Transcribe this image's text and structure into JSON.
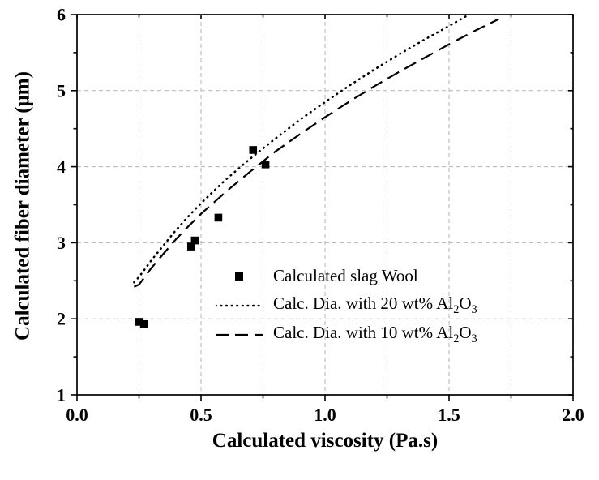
{
  "chart_data": {
    "type": "scatter",
    "title": "",
    "xlabel": "Calculated viscosity (Pa.s)",
    "ylabel": "Calculated fiber diameter (μm)",
    "xlim": [
      0.0,
      2.0
    ],
    "ylim": [
      1,
      6
    ],
    "x_ticks": {
      "values": [
        0.0,
        0.5,
        1.0,
        1.5,
        2.0
      ],
      "labels": [
        "0.0",
        "0.5",
        "1.0",
        "1.5",
        "2.0"
      ],
      "minor_values": [
        0.25,
        0.75,
        1.25,
        1.75
      ]
    },
    "y_ticks": {
      "values": [
        1,
        2,
        3,
        4,
        5,
        6
      ],
      "labels": [
        "1",
        "2",
        "3",
        "4",
        "5",
        "6"
      ],
      "minor_values": [
        1.5,
        2.5,
        3.5,
        4.5,
        5.5
      ]
    },
    "grid": {
      "style": "dashed",
      "color": "#b3b3b3",
      "vertical_values": [
        0.25,
        0.5,
        0.75,
        1.0,
        1.25,
        1.5,
        1.75
      ],
      "horizontal_values": [
        2,
        3,
        4,
        5
      ]
    },
    "series": [
      {
        "name": "Calculated slag Wool",
        "kind": "scatter",
        "marker": "square",
        "color": "#000000",
        "points": [
          [
            0.25,
            1.96
          ],
          [
            0.27,
            1.93
          ],
          [
            0.46,
            2.95
          ],
          [
            0.475,
            3.03
          ],
          [
            0.57,
            3.33
          ],
          [
            0.71,
            4.22
          ],
          [
            0.76,
            4.03
          ]
        ]
      },
      {
        "name": "Calc. Dia. with 20 wt% Al2O3",
        "kind": "line",
        "style": "dotted",
        "color": "#000000",
        "points": [
          [
            0.23,
            2.48
          ],
          [
            0.25,
            2.55
          ],
          [
            0.3,
            2.77
          ],
          [
            0.35,
            2.97
          ],
          [
            0.4,
            3.17
          ],
          [
            0.45,
            3.35
          ],
          [
            0.5,
            3.52
          ],
          [
            0.6,
            3.83
          ],
          [
            0.7,
            4.11
          ],
          [
            0.8,
            4.37
          ],
          [
            0.9,
            4.62
          ],
          [
            1.0,
            4.85
          ],
          [
            1.1,
            5.07
          ],
          [
            1.2,
            5.28
          ],
          [
            1.3,
            5.48
          ],
          [
            1.4,
            5.67
          ],
          [
            1.5,
            5.85
          ],
          [
            1.58,
            6.0
          ]
        ]
      },
      {
        "name": "Calc. Dia. with 10 wt% Al2O3",
        "kind": "line",
        "style": "dashed",
        "color": "#000000",
        "points": [
          [
            0.23,
            2.42
          ],
          [
            0.25,
            2.45
          ],
          [
            0.3,
            2.67
          ],
          [
            0.35,
            2.86
          ],
          [
            0.4,
            3.05
          ],
          [
            0.45,
            3.22
          ],
          [
            0.5,
            3.38
          ],
          [
            0.6,
            3.67
          ],
          [
            0.7,
            3.94
          ],
          [
            0.8,
            4.2
          ],
          [
            0.9,
            4.43
          ],
          [
            1.0,
            4.65
          ],
          [
            1.1,
            4.86
          ],
          [
            1.2,
            5.06
          ],
          [
            1.3,
            5.25
          ],
          [
            1.4,
            5.43
          ],
          [
            1.5,
            5.61
          ],
          [
            1.6,
            5.78
          ],
          [
            1.7,
            5.94
          ]
        ]
      }
    ],
    "legend": {
      "position": "inside-lower-middle",
      "entries": [
        {
          "marker": "square",
          "parts": [
            {
              "t": "Calculated slag Wool"
            }
          ]
        },
        {
          "marker": "dotted-line",
          "parts": [
            {
              "t": "Calc. Dia. with 20 wt% Al"
            },
            {
              "t": "2",
              "sub": true
            },
            {
              "t": "O"
            },
            {
              "t": "3",
              "sub": true
            }
          ]
        },
        {
          "marker": "dashed-line",
          "parts": [
            {
              "t": "Calc. Dia. with 10 wt% Al"
            },
            {
              "t": "2",
              "sub": true
            },
            {
              "t": "O"
            },
            {
              "t": "3",
              "sub": true
            }
          ]
        }
      ]
    }
  }
}
